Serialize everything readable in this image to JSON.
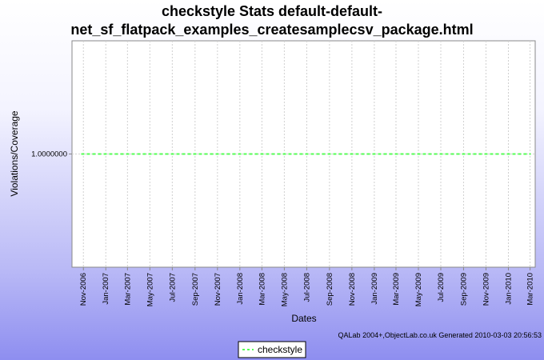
{
  "chart_data": {
    "type": "line",
    "title_lines": [
      "checkstyle  Stats default-default-",
      "net_sf_flatpack_examples_createsamplecsv_package.html"
    ],
    "xlabel": "Dates",
    "ylabel": "Violations/Coverage",
    "x_ticks": [
      "Nov-2006",
      "Jan-2007",
      "Mar-2007",
      "May-2007",
      "Jul-2007",
      "Sep-2007",
      "Nov-2007",
      "Jan-2008",
      "Mar-2008",
      "May-2008",
      "Jul-2008",
      "Sep-2008",
      "Nov-2008",
      "Jan-2009",
      "Mar-2009",
      "May-2009",
      "Jul-2009",
      "Sep-2009",
      "Nov-2009",
      "Jan-2010",
      "Mar-2010"
    ],
    "y_ticks": [
      "1.0000000"
    ],
    "ylim": [
      0.0,
      2.0
    ],
    "xlim": [
      "2006-10-01",
      "2010-03-15"
    ],
    "grid": true,
    "legend_position": "bottom",
    "series": [
      {
        "name": "checkstyle",
        "color": "#55ff55",
        "style": "dashed",
        "x": [
          "2006-10-26",
          "2010-03-03"
        ],
        "values": [
          1.0,
          1.0
        ]
      }
    ],
    "credit": "QALab 2004+,ObjectLab.co.uk  Generated 2010-03-03 20:56:53"
  }
}
